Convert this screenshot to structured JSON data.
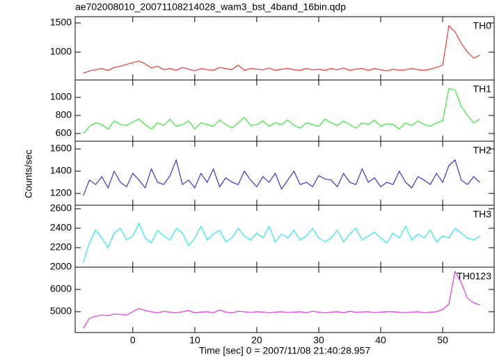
{
  "title": "ae702008010_20071108214028_wam3_bst_4band_16bin.qdp",
  "y_label": "Counts/sec",
  "x_label": "Time [sec] 0 = 2007/11/08 21:40:28.957",
  "chart_data": [
    {
      "type": "line",
      "label": "TH0",
      "color": "#ff3333",
      "x": [
        -8,
        -7,
        -6,
        -5,
        -4,
        -3,
        -2,
        -1,
        0,
        1,
        2,
        3,
        4,
        5,
        6,
        7,
        8,
        9,
        10,
        11,
        12,
        13,
        14,
        15,
        16,
        17,
        18,
        19,
        20,
        21,
        22,
        23,
        24,
        25,
        26,
        27,
        28,
        29,
        30,
        31,
        32,
        33,
        34,
        35,
        36,
        37,
        38,
        39,
        40,
        41,
        42,
        43,
        44,
        45,
        46,
        47,
        48,
        49,
        50,
        51,
        52,
        53,
        54,
        55,
        56
      ],
      "values": [
        640,
        680,
        700,
        720,
        690,
        740,
        760,
        790,
        820,
        850,
        800,
        730,
        760,
        700,
        720,
        690,
        740,
        710,
        680,
        720,
        700,
        690,
        740,
        720,
        700,
        780,
        690,
        720,
        710,
        700,
        730,
        690,
        710,
        720,
        700,
        690,
        720,
        700,
        710,
        690,
        720,
        700,
        730,
        690,
        710,
        720,
        690,
        720,
        700,
        680,
        710,
        690,
        700,
        720,
        700,
        690,
        710,
        740,
        780,
        1450,
        1350,
        1150,
        1000,
        900,
        950
      ],
      "xlim": [
        -9.3,
        58.3
      ],
      "xticks": [
        0,
        10,
        20,
        30,
        40,
        50
      ],
      "ylim": [
        524,
        1607
      ],
      "yticks": [
        1000,
        1500
      ]
    },
    {
      "type": "line",
      "label": "TH1",
      "color": "#33ee33",
      "x": [
        -8,
        -7,
        -6,
        -5,
        -4,
        -3,
        -2,
        -1,
        0,
        1,
        2,
        3,
        4,
        5,
        6,
        7,
        8,
        9,
        10,
        11,
        12,
        13,
        14,
        15,
        16,
        17,
        18,
        19,
        20,
        21,
        22,
        23,
        24,
        25,
        26,
        27,
        28,
        29,
        30,
        31,
        32,
        33,
        34,
        35,
        36,
        37,
        38,
        39,
        40,
        41,
        42,
        43,
        44,
        45,
        46,
        47,
        48,
        49,
        50,
        51,
        52,
        53,
        54,
        55,
        56
      ],
      "values": [
        600,
        680,
        720,
        700,
        650,
        740,
        700,
        690,
        730,
        760,
        700,
        650,
        720,
        690,
        760,
        680,
        700,
        740,
        650,
        720,
        700,
        680,
        750,
        700,
        660,
        720,
        780,
        690,
        700,
        740,
        680,
        720,
        700,
        750,
        690,
        660,
        720,
        700,
        680,
        760,
        720,
        690,
        740,
        700,
        660,
        720,
        700,
        750,
        680,
        710,
        700,
        650,
        720,
        690,
        740,
        700,
        680,
        720,
        740,
        1100,
        1080,
        900,
        800,
        720,
        760
      ],
      "xlim": [
        -9.3,
        58.3
      ],
      "xticks": [
        0,
        10,
        20,
        30,
        40,
        50
      ],
      "ylim": [
        515,
        1192
      ],
      "yticks": [
        600,
        800,
        1000
      ]
    },
    {
      "type": "line",
      "label": "TH2",
      "color": "#3333dd",
      "x": [
        -8,
        -7,
        -6,
        -5,
        -4,
        -3,
        -2,
        -1,
        0,
        1,
        2,
        3,
        4,
        5,
        6,
        7,
        8,
        9,
        10,
        11,
        12,
        13,
        14,
        15,
        16,
        17,
        18,
        19,
        20,
        21,
        22,
        23,
        24,
        25,
        26,
        27,
        28,
        29,
        30,
        31,
        32,
        33,
        34,
        35,
        36,
        37,
        38,
        39,
        40,
        41,
        42,
        43,
        44,
        45,
        46,
        47,
        48,
        49,
        50,
        51,
        52,
        53,
        54,
        55,
        56
      ],
      "values": [
        1180,
        1320,
        1280,
        1350,
        1250,
        1400,
        1300,
        1260,
        1380,
        1320,
        1250,
        1420,
        1300,
        1280,
        1360,
        1500,
        1280,
        1320,
        1250,
        1380,
        1300,
        1420,
        1260,
        1340,
        1300,
        1280,
        1400,
        1320,
        1260,
        1350,
        1300,
        1380,
        1240,
        1320,
        1400,
        1280,
        1300,
        1260,
        1360,
        1330,
        1320,
        1260,
        1380,
        1300,
        1280,
        1420,
        1300,
        1340,
        1260,
        1300,
        1280,
        1400,
        1300,
        1250,
        1350,
        1320,
        1280,
        1380,
        1300,
        1450,
        1500,
        1320,
        1280,
        1350,
        1300
      ],
      "xlim": [
        -9.3,
        58.3
      ],
      "xticks": [
        0,
        10,
        20,
        30,
        40,
        50
      ],
      "ylim": [
        1094,
        1669
      ],
      "yticks": [
        1200,
        1400,
        1600
      ]
    },
    {
      "type": "line",
      "label": "TH3",
      "color": "#22eeee",
      "x": [
        -8,
        -7,
        -6,
        -5,
        -4,
        -3,
        -2,
        -1,
        0,
        1,
        2,
        3,
        4,
        5,
        6,
        7,
        8,
        9,
        10,
        11,
        12,
        13,
        14,
        15,
        16,
        17,
        18,
        19,
        20,
        21,
        22,
        23,
        24,
        25,
        26,
        27,
        28,
        29,
        30,
        31,
        32,
        33,
        34,
        35,
        36,
        37,
        38,
        39,
        40,
        41,
        42,
        43,
        44,
        45,
        46,
        47,
        48,
        49,
        50,
        51,
        52,
        53,
        54,
        55,
        56
      ],
      "values": [
        2050,
        2250,
        2380,
        2300,
        2200,
        2350,
        2400,
        2280,
        2320,
        2450,
        2300,
        2250,
        2380,
        2320,
        2280,
        2400,
        2350,
        2220,
        2300,
        2420,
        2280,
        2340,
        2380,
        2260,
        2300,
        2400,
        2320,
        2280,
        2350,
        2300,
        2420,
        2260,
        2340,
        2300,
        2380,
        2280,
        2320,
        2400,
        2300,
        2260,
        2300,
        2380,
        2260,
        2340,
        2400,
        2280,
        2320,
        2360,
        2300,
        2250,
        2350,
        2300,
        2420,
        2280,
        2340,
        2300,
        2380,
        2260,
        2320,
        2300,
        2400,
        2350,
        2300,
        2280,
        2320
      ],
      "xlim": [
        -9.3,
        58.3
      ],
      "xticks": [
        0,
        10,
        20,
        30,
        40,
        50
      ],
      "ylim": [
        2000,
        2636
      ],
      "yticks": [
        2000,
        2200,
        2400,
        2600
      ]
    },
    {
      "type": "line",
      "label": "TH0123",
      "color": "#ee33ee",
      "x": [
        -8,
        -7,
        -6,
        -5,
        -4,
        -3,
        -2,
        -1,
        0,
        1,
        2,
        3,
        4,
        5,
        6,
        7,
        8,
        9,
        10,
        11,
        12,
        13,
        14,
        15,
        16,
        17,
        18,
        19,
        20,
        21,
        22,
        23,
        24,
        25,
        26,
        27,
        28,
        29,
        30,
        31,
        32,
        33,
        34,
        35,
        36,
        37,
        38,
        39,
        40,
        41,
        42,
        43,
        44,
        45,
        46,
        47,
        48,
        49,
        50,
        51,
        52,
        53,
        54,
        55,
        56
      ],
      "values": [
        4250,
        4700,
        4800,
        4850,
        4820,
        4900,
        4880,
        4850,
        5000,
        5150,
        5050,
        5000,
        4950,
        5020,
        4980,
        4950,
        5000,
        5050,
        4950,
        4980,
        5000,
        4950,
        5080,
        4980,
        4950,
        5020,
        5000,
        4960,
        5000,
        4980,
        4950,
        4980,
        5000,
        4960,
        4980,
        5000,
        4950,
        5020,
        4980,
        4950,
        4980,
        5000,
        4950,
        5020,
        4970,
        4990,
        5000,
        4960,
        4980,
        5000,
        5000,
        4970,
        4960,
        4980,
        5000,
        4950,
        4980,
        5000,
        5100,
        5350,
        6800,
        6300,
        5600,
        5400,
        5300
      ],
      "xlim": [
        -9.3,
        58.3
      ],
      "xticks": [
        0,
        10,
        20,
        30,
        40,
        50
      ],
      "ylim": [
        4062,
        7000
      ],
      "yticks": [
        5000,
        6000
      ]
    }
  ]
}
